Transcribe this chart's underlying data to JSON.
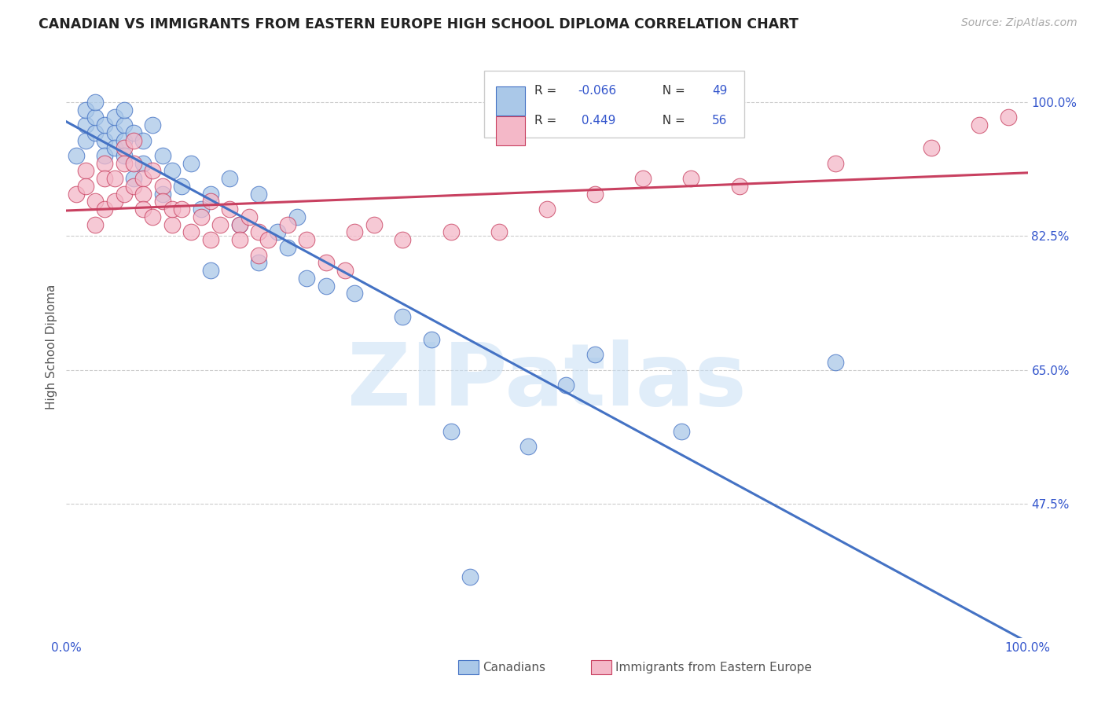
{
  "title": "CANADIAN VS IMMIGRANTS FROM EASTERN EUROPE HIGH SCHOOL DIPLOMA CORRELATION CHART",
  "source": "Source: ZipAtlas.com",
  "ylabel": "High School Diploma",
  "ytick_labels": [
    "100.0%",
    "82.5%",
    "65.0%",
    "47.5%"
  ],
  "ytick_values": [
    1.0,
    0.825,
    0.65,
    0.475
  ],
  "xlim": [
    0.0,
    1.0
  ],
  "ylim": [
    0.3,
    1.06
  ],
  "canadians_color": "#aac8e8",
  "canadians_edge_color": "#4472C4",
  "immigrants_color": "#f4b8c8",
  "immigrants_edge_color": "#C84060",
  "canadians_line_color": "#4472C4",
  "immigrants_line_color": "#C84060",
  "watermark_text": "ZIPatlas",
  "background_color": "#ffffff",
  "grid_color": "#cccccc",
  "title_color": "#222222",
  "axis_label_color": "#555555",
  "tick_color": "#3355cc",
  "legend_R_canadian": "R = -0.066",
  "legend_N_canadian": "N = 49",
  "legend_R_immigrant": "R =  0.449",
  "legend_N_immigrant": "N = 56",
  "legend_label_canadian": "Canadians",
  "legend_label_immigrant": "Immigrants from Eastern Europe",
  "canadians_x": [
    0.01,
    0.02,
    0.02,
    0.02,
    0.03,
    0.03,
    0.03,
    0.04,
    0.04,
    0.04,
    0.05,
    0.05,
    0.05,
    0.06,
    0.06,
    0.06,
    0.06,
    0.07,
    0.07,
    0.08,
    0.08,
    0.09,
    0.1,
    0.1,
    0.11,
    0.12,
    0.13,
    0.14,
    0.15,
    0.15,
    0.17,
    0.18,
    0.2,
    0.2,
    0.22,
    0.23,
    0.24,
    0.25,
    0.27,
    0.3,
    0.35,
    0.38,
    0.4,
    0.42,
    0.48,
    0.52,
    0.55,
    0.64,
    0.8
  ],
  "canadians_y": [
    0.93,
    0.95,
    0.97,
    0.99,
    0.96,
    0.98,
    1.0,
    0.95,
    0.97,
    0.93,
    0.96,
    0.94,
    0.98,
    0.97,
    0.95,
    0.93,
    0.99,
    0.96,
    0.9,
    0.95,
    0.92,
    0.97,
    0.93,
    0.88,
    0.91,
    0.89,
    0.92,
    0.86,
    0.88,
    0.78,
    0.9,
    0.84,
    0.88,
    0.79,
    0.83,
    0.81,
    0.85,
    0.77,
    0.76,
    0.75,
    0.72,
    0.69,
    0.57,
    0.38,
    0.55,
    0.63,
    0.67,
    0.57,
    0.66
  ],
  "immigrants_x": [
    0.01,
    0.02,
    0.02,
    0.03,
    0.03,
    0.04,
    0.04,
    0.04,
    0.05,
    0.05,
    0.06,
    0.06,
    0.06,
    0.07,
    0.07,
    0.07,
    0.08,
    0.08,
    0.08,
    0.09,
    0.09,
    0.1,
    0.1,
    0.11,
    0.11,
    0.12,
    0.13,
    0.14,
    0.15,
    0.15,
    0.16,
    0.17,
    0.18,
    0.18,
    0.19,
    0.2,
    0.2,
    0.21,
    0.23,
    0.25,
    0.27,
    0.29,
    0.3,
    0.32,
    0.35,
    0.4,
    0.45,
    0.5,
    0.55,
    0.6,
    0.65,
    0.7,
    0.8,
    0.9,
    0.95,
    0.98
  ],
  "immigrants_y": [
    0.88,
    0.91,
    0.89,
    0.84,
    0.87,
    0.92,
    0.9,
    0.86,
    0.9,
    0.87,
    0.94,
    0.92,
    0.88,
    0.95,
    0.92,
    0.89,
    0.9,
    0.88,
    0.86,
    0.91,
    0.85,
    0.89,
    0.87,
    0.84,
    0.86,
    0.86,
    0.83,
    0.85,
    0.87,
    0.82,
    0.84,
    0.86,
    0.84,
    0.82,
    0.85,
    0.83,
    0.8,
    0.82,
    0.84,
    0.82,
    0.79,
    0.78,
    0.83,
    0.84,
    0.82,
    0.83,
    0.83,
    0.86,
    0.88,
    0.9,
    0.9,
    0.89,
    0.92,
    0.94,
    0.97,
    0.98
  ]
}
